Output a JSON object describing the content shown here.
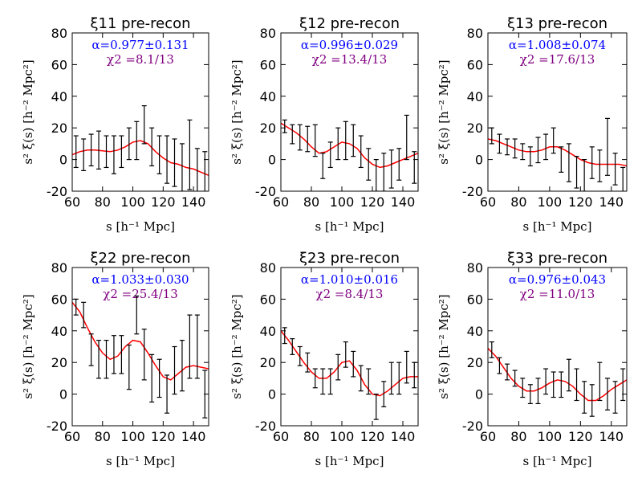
{
  "chart_data": [
    {
      "type": "line",
      "title": "ξ11 pre-recon",
      "alpha_text": "α=0.977±0.131",
      "chi2_text": "χ2 =8.1/13",
      "xlabel": "s [h⁻¹ Mpc]",
      "ylabel": "s² ξ(s) [h⁻² Mpc²]",
      "xlim": [
        60,
        150
      ],
      "ylim": [
        -20,
        80
      ],
      "xticks": [
        "60",
        "80",
        "100",
        "120",
        "140"
      ],
      "yticks": [
        "-20",
        "0",
        "20",
        "40",
        "60",
        "80"
      ],
      "series": [
        {
          "name": "model",
          "x": [
            60,
            65,
            70,
            75,
            80,
            85,
            90,
            95,
            100,
            105,
            110,
            115,
            120,
            125,
            130,
            135,
            140,
            145,
            150
          ],
          "y": [
            3,
            5,
            6,
            6,
            5.5,
            5,
            6,
            8,
            11,
            12,
            10,
            5,
            1,
            -2,
            -3,
            -5,
            -6,
            -8,
            -10
          ]
        },
        {
          "name": "data",
          "x": [
            62.5,
            67.5,
            72.5,
            77.5,
            82.5,
            87.5,
            92.5,
            97.5,
            102.5,
            107.5,
            112.5,
            117.5,
            122.5,
            127.5,
            132.5,
            137.5,
            142.5,
            147.5
          ],
          "y": [
            5,
            3,
            6,
            6,
            5,
            3,
            5,
            10,
            12,
            22,
            8,
            3,
            0,
            -2,
            -5,
            3,
            -8,
            -10
          ],
          "err": [
            10,
            10,
            10,
            12,
            10,
            12,
            10,
            10,
            12,
            12,
            12,
            12,
            15,
            15,
            15,
            22,
            15,
            15
          ]
        }
      ]
    },
    {
      "type": "line",
      "title": "ξ12 pre-recon",
      "alpha_text": "α=0.996±0.029",
      "chi2_text": "χ2 =13.4/13",
      "xlabel": "s [h⁻¹ Mpc]",
      "ylabel": "s² ξ(s) [h⁻² Mpc²]",
      "xlim": [
        60,
        150
      ],
      "ylim": [
        -20,
        80
      ],
      "xticks": [
        "60",
        "80",
        "100",
        "120",
        "140"
      ],
      "yticks": [
        "-20",
        "0",
        "20",
        "40",
        "60",
        "80"
      ],
      "series": [
        {
          "name": "model",
          "x": [
            60,
            65,
            70,
            75,
            80,
            85,
            90,
            95,
            100,
            105,
            110,
            115,
            120,
            125,
            130,
            135,
            140,
            145,
            150
          ],
          "y": [
            23,
            20,
            17,
            13,
            8,
            4,
            5,
            8,
            11,
            10,
            7,
            1,
            -3,
            -5,
            -4,
            -2,
            0,
            2,
            4
          ]
        },
        {
          "name": "data",
          "x": [
            62.5,
            67.5,
            72.5,
            77.5,
            82.5,
            87.5,
            92.5,
            97.5,
            102.5,
            107.5,
            112.5,
            117.5,
            122.5,
            127.5,
            132.5,
            137.5,
            142.5,
            147.5
          ],
          "y": [
            21,
            16,
            14,
            13,
            12,
            -4,
            3,
            10,
            12,
            12,
            5,
            -3,
            -10,
            -8,
            -6,
            -3,
            14,
            -5
          ],
          "err": [
            4,
            6,
            8,
            8,
            10,
            8,
            8,
            10,
            12,
            10,
            10,
            10,
            10,
            12,
            12,
            10,
            14,
            10
          ]
        }
      ]
    },
    {
      "type": "line",
      "title": "ξ13 pre-recon",
      "alpha_text": "α=1.008±0.074",
      "chi2_text": "χ2 =17.6/13",
      "xlabel": "s [h⁻¹ Mpc]",
      "ylabel": "s² ξ(s) [h⁻² Mpc²]",
      "xlim": [
        60,
        150
      ],
      "ylim": [
        -20,
        80
      ],
      "xticks": [
        "60",
        "80",
        "100",
        "120",
        "140"
      ],
      "yticks": [
        "-20",
        "0",
        "20",
        "40",
        "60",
        "80"
      ],
      "series": [
        {
          "name": "model",
          "x": [
            60,
            65,
            70,
            75,
            80,
            85,
            90,
            95,
            100,
            105,
            110,
            115,
            120,
            125,
            130,
            135,
            140,
            145,
            150
          ],
          "y": [
            13,
            12,
            10,
            8,
            6,
            5,
            5,
            6,
            8,
            8,
            6,
            3,
            0,
            -2,
            -3,
            -3,
            -3,
            -3,
            -4
          ]
        },
        {
          "name": "data",
          "x": [
            62.5,
            67.5,
            72.5,
            77.5,
            82.5,
            87.5,
            92.5,
            97.5,
            102.5,
            107.5,
            112.5,
            117.5,
            122.5,
            127.5,
            132.5,
            137.5,
            142.5,
            147.5
          ],
          "y": [
            15,
            10,
            8,
            7,
            5,
            2,
            6,
            8,
            12,
            0,
            -2,
            -8,
            -10,
            -2,
            -4,
            8,
            -6,
            -15
          ],
          "err": [
            5,
            6,
            5,
            6,
            5,
            6,
            8,
            8,
            8,
            8,
            12,
            10,
            10,
            10,
            10,
            18,
            10,
            10
          ]
        }
      ]
    },
    {
      "type": "line",
      "title": "ξ22 pre-recon",
      "alpha_text": "α=1.033±0.030",
      "chi2_text": "χ2 =25.4/13",
      "xlabel": "s [h⁻¹ Mpc]",
      "ylabel": "s² ξ(s) [h⁻² Mpc²]",
      "xlim": [
        60,
        150
      ],
      "ylim": [
        -20,
        80
      ],
      "xticks": [
        "60",
        "80",
        "100",
        "120",
        "140"
      ],
      "yticks": [
        "-20",
        "0",
        "20",
        "40",
        "60",
        "80"
      ],
      "series": [
        {
          "name": "model",
          "x": [
            60,
            65,
            70,
            75,
            80,
            85,
            90,
            95,
            100,
            105,
            110,
            115,
            120,
            125,
            130,
            135,
            140,
            145,
            150
          ],
          "y": [
            58,
            52,
            42,
            33,
            26,
            22,
            24,
            30,
            34,
            33,
            26,
            18,
            11,
            9,
            13,
            17,
            18,
            17,
            16
          ]
        },
        {
          "name": "data",
          "x": [
            62.5,
            67.5,
            72.5,
            77.5,
            82.5,
            87.5,
            92.5,
            97.5,
            102.5,
            107.5,
            112.5,
            117.5,
            122.5,
            127.5,
            132.5,
            137.5,
            142.5,
            147.5
          ],
          "y": [
            55,
            50,
            28,
            22,
            22,
            25,
            25,
            17,
            50,
            25,
            10,
            10,
            0,
            15,
            18,
            30,
            30,
            0
          ],
          "err": [
            5,
            8,
            10,
            12,
            12,
            12,
            12,
            14,
            12,
            16,
            15,
            12,
            12,
            15,
            16,
            20,
            20,
            15
          ]
        }
      ]
    },
    {
      "type": "line",
      "title": "ξ23 pre-recon",
      "alpha_text": "α=1.010±0.016",
      "chi2_text": "χ2 =8.4/13",
      "xlabel": "s [h⁻¹ Mpc]",
      "ylabel": "s² ξ(s) [h⁻² Mpc²]",
      "xlim": [
        60,
        150
      ],
      "ylim": [
        -20,
        80
      ],
      "xticks": [
        "60",
        "80",
        "100",
        "120",
        "140"
      ],
      "yticks": [
        "-20",
        "0",
        "20",
        "40",
        "60",
        "80"
      ],
      "series": [
        {
          "name": "model",
          "x": [
            60,
            65,
            70,
            75,
            80,
            85,
            90,
            95,
            100,
            105,
            110,
            115,
            120,
            125,
            130,
            135,
            140,
            145,
            150
          ],
          "y": [
            40,
            34,
            27,
            20,
            14,
            10,
            10,
            14,
            20,
            21,
            15,
            6,
            0,
            -1,
            2,
            6,
            10,
            11,
            11
          ]
        },
        {
          "name": "data",
          "x": [
            62.5,
            67.5,
            72.5,
            77.5,
            82.5,
            87.5,
            92.5,
            97.5,
            102.5,
            107.5,
            112.5,
            117.5,
            122.5,
            127.5,
            132.5,
            137.5,
            142.5,
            147.5
          ],
          "y": [
            37,
            30,
            24,
            20,
            10,
            8,
            8,
            17,
            25,
            19,
            10,
            8,
            -8,
            0,
            10,
            10,
            17,
            12
          ],
          "err": [
            5,
            5,
            6,
            6,
            6,
            8,
            8,
            8,
            8,
            8,
            8,
            8,
            8,
            8,
            10,
            10,
            10,
            8
          ]
        }
      ]
    },
    {
      "type": "line",
      "title": "ξ33 pre-recon",
      "alpha_text": "α=0.976±0.043",
      "chi2_text": "χ2 =11.0/13",
      "xlabel": "s [h⁻¹ Mpc]",
      "ylabel": "s² ξ(s) [h⁻² Mpc²]",
      "xlim": [
        60,
        150
      ],
      "ylim": [
        -20,
        80
      ],
      "xticks": [
        "60",
        "80",
        "100",
        "120",
        "140"
      ],
      "yticks": [
        "-20",
        "0",
        "20",
        "40",
        "60",
        "80"
      ],
      "series": [
        {
          "name": "model",
          "x": [
            60,
            65,
            70,
            75,
            80,
            85,
            90,
            95,
            100,
            105,
            110,
            115,
            120,
            125,
            130,
            135,
            140,
            145,
            150
          ],
          "y": [
            29,
            24,
            17,
            10,
            5,
            2,
            2,
            4,
            7,
            9,
            8,
            5,
            0,
            -4,
            -4,
            -1,
            3,
            6,
            9
          ]
        },
        {
          "name": "data",
          "x": [
            62.5,
            67.5,
            72.5,
            77.5,
            82.5,
            87.5,
            92.5,
            97.5,
            102.5,
            107.5,
            112.5,
            117.5,
            122.5,
            127.5,
            132.5,
            137.5,
            142.5,
            147.5
          ],
          "y": [
            28,
            18,
            14,
            10,
            4,
            0,
            2,
            8,
            6,
            6,
            12,
            6,
            -2,
            -4,
            8,
            0,
            -2,
            6
          ],
          "err": [
            5,
            5,
            5,
            5,
            6,
            6,
            8,
            8,
            8,
            8,
            10,
            10,
            10,
            10,
            12,
            10,
            10,
            10
          ]
        }
      ]
    }
  ]
}
